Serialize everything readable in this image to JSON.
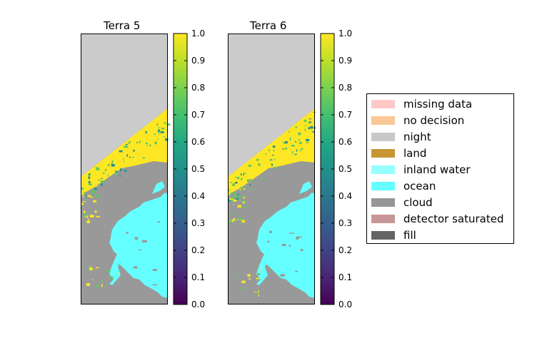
{
  "chart_data": [
    {
      "type": "heatmap",
      "title": "Terra 5",
      "colorbar": {
        "colormap": "viridis",
        "range": [
          0.0,
          1.0
        ],
        "ticks": [
          "0.0",
          "0.1",
          "0.2",
          "0.3",
          "0.4",
          "0.5",
          "0.6",
          "0.7",
          "0.8",
          "0.9",
          "1.0"
        ]
      }
    },
    {
      "type": "heatmap",
      "title": "Terra 6",
      "colorbar": {
        "colormap": "viridis",
        "range": [
          0.0,
          1.0
        ],
        "ticks": [
          "0.0",
          "0.1",
          "0.2",
          "0.3",
          "0.4",
          "0.5",
          "0.6",
          "0.7",
          "0.8",
          "0.9",
          "1.0"
        ]
      }
    }
  ],
  "legend": {
    "placement": "right",
    "items": [
      {
        "label": "missing data",
        "color": "#ffc8c8"
      },
      {
        "label": "no decision",
        "color": "#fac896"
      },
      {
        "label": "night",
        "color": "#c8c8c8"
      },
      {
        "label": "land",
        "color": "#c89632"
      },
      {
        "label": "inland water",
        "color": "#96ffff"
      },
      {
        "label": "ocean",
        "color": "#64ffff"
      },
      {
        "label": "cloud",
        "color": "#969696"
      },
      {
        "label": "detector saturated",
        "color": "#c89696"
      },
      {
        "label": "fill",
        "color": "#646464"
      }
    ]
  },
  "colors": {
    "night": "#cbcbcb",
    "cloud": "#999999",
    "ocean": "#66ffff",
    "snow_high": "#fde725",
    "snow_mid": "#5ec962",
    "snow_low": "#21918c"
  }
}
